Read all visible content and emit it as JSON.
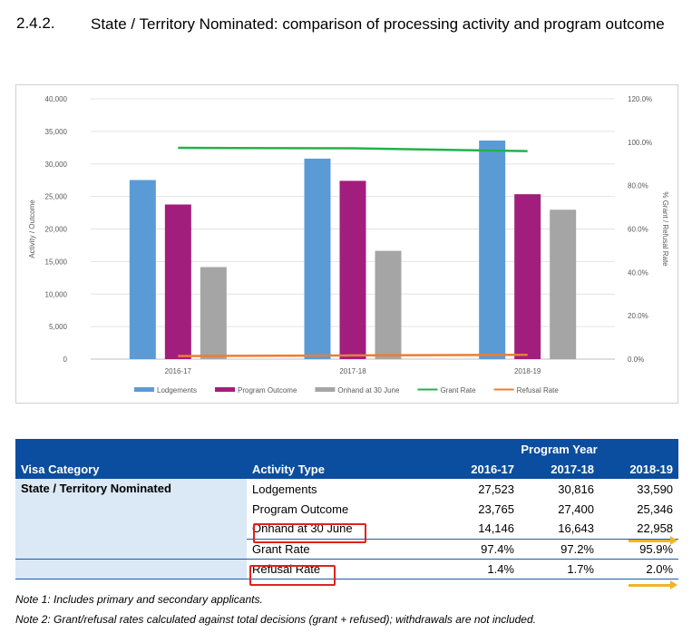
{
  "section": {
    "number": "2.4.2.",
    "title": "State / Territory Nominated: comparison of processing activity and program outcome"
  },
  "chart_data": {
    "type": "bar",
    "categories": [
      "2016-17",
      "2017-18",
      "2018-19"
    ],
    "series": [
      {
        "name": "Lodgements",
        "values": [
          27523,
          30816,
          33590
        ],
        "color": "#5b9bd5",
        "axis": "left"
      },
      {
        "name": "Program Outcome",
        "values": [
          23765,
          27400,
          25346
        ],
        "color": "#a21e7c",
        "axis": "left"
      },
      {
        "name": "Onhand at 30 June",
        "values": [
          14146,
          16643,
          22958
        ],
        "color": "#a5a5a5",
        "axis": "left"
      }
    ],
    "line_series": [
      {
        "name": "Grant Rate",
        "values": [
          97.4,
          97.2,
          95.9
        ],
        "color": "#22b14c",
        "axis": "right"
      },
      {
        "name": "Refusal Rate",
        "values": [
          1.4,
          1.7,
          2.0
        ],
        "color": "#ed7d31",
        "axis": "right"
      }
    ],
    "ylabel": "Activity / Outcome",
    "ylabel_right": "% Grant / Refusal Rate",
    "ylim": [
      0,
      40000
    ],
    "ylim_right": [
      0,
      120
    ],
    "yticks": [
      "0",
      "5,000",
      "10,000",
      "15,000",
      "20,000",
      "25,000",
      "30,000",
      "35,000",
      "40,000"
    ],
    "yticks_right": [
      "0.0%",
      "20.0%",
      "40.0%",
      "60.0%",
      "80.0%",
      "100.0%",
      "120.0%"
    ],
    "legend_position": "bottom",
    "grid": true
  },
  "table": {
    "group_header": "Program Year",
    "col_headers": [
      "Visa Category",
      "Activity Type",
      "2016-17",
      "2017-18",
      "2018-19"
    ],
    "category": "State / Territory Nominated",
    "rows": [
      {
        "activity": "Lodgements",
        "y1": "27,523",
        "y2": "30,816",
        "y3": "33,590"
      },
      {
        "activity": "Program Outcome",
        "y1": "23,765",
        "y2": "27,400",
        "y3": "25,346"
      },
      {
        "activity": "Onhand at 30 June",
        "y1": "14,146",
        "y2": "16,643",
        "y3": "22,958"
      },
      {
        "activity": "Grant Rate",
        "y1": "97.4%",
        "y2": "97.2%",
        "y3": "95.9%"
      },
      {
        "activity": "Refusal Rate",
        "y1": "1.4%",
        "y2": "1.7%",
        "y3": "2.0%"
      }
    ]
  },
  "notes": [
    "Note 1: Includes primary and secondary applicants.",
    "Note 2: Grant/refusal rates calculated against total decisions (grant + refused); withdrawals are not included."
  ],
  "colors": {
    "header_blue": "#0b4d9e",
    "category_fill": "#dbe8f5",
    "highlight_red": "#e0231b",
    "arrow_yellow": "#f2b42a"
  }
}
